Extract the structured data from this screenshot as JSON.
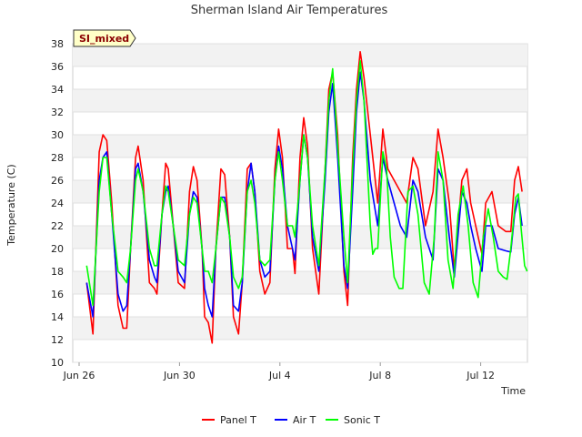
{
  "chart_data": {
    "type": "line",
    "title": "Sherman Island Air Temperatures",
    "xlabel": "Time",
    "ylabel": "Temperature (C)",
    "tag": "SI_mixed",
    "xlim": [
      0,
      18
    ],
    "ylim": [
      10,
      38
    ],
    "yticks": [
      10,
      12,
      14,
      16,
      18,
      20,
      22,
      24,
      26,
      28,
      30,
      32,
      34,
      36,
      38
    ],
    "xticks": [
      {
        "day": 0,
        "label": "Jun 26"
      },
      {
        "day": 4,
        "label": "Jun 30"
      },
      {
        "day": 8,
        "label": "Jul 4"
      },
      {
        "day": 12,
        "label": "Jul 8"
      },
      {
        "day": 16,
        "label": "Jul 12"
      }
    ],
    "grid": true,
    "legend_position": "bottom",
    "series": [
      {
        "name": "Panel T",
        "color": "#ff0000",
        "points": [
          [
            0.3,
            17.0
          ],
          [
            0.55,
            12.5
          ],
          [
            0.8,
            28.5
          ],
          [
            0.95,
            30.0
          ],
          [
            1.1,
            29.5
          ],
          [
            1.3,
            24.0
          ],
          [
            1.55,
            15.0
          ],
          [
            1.75,
            13.0
          ],
          [
            1.9,
            13.0
          ],
          [
            2.05,
            20.0
          ],
          [
            2.25,
            28.0
          ],
          [
            2.35,
            29.0
          ],
          [
            2.55,
            26.0
          ],
          [
            2.8,
            17.0
          ],
          [
            3.0,
            16.5
          ],
          [
            3.1,
            16.0
          ],
          [
            3.3,
            23.0
          ],
          [
            3.45,
            27.5
          ],
          [
            3.55,
            27.0
          ],
          [
            3.75,
            22.0
          ],
          [
            3.95,
            17.0
          ],
          [
            4.2,
            16.5
          ],
          [
            4.4,
            25.0
          ],
          [
            4.55,
            27.2
          ],
          [
            4.7,
            26.0
          ],
          [
            4.9,
            20.0
          ],
          [
            5.0,
            14.0
          ],
          [
            5.15,
            13.5
          ],
          [
            5.3,
            11.7
          ],
          [
            5.45,
            20.0
          ],
          [
            5.65,
            27.0
          ],
          [
            5.8,
            26.5
          ],
          [
            6.0,
            21.0
          ],
          [
            6.15,
            14.0
          ],
          [
            6.35,
            12.5
          ],
          [
            6.5,
            17.0
          ],
          [
            6.7,
            27.0
          ],
          [
            6.85,
            27.5
          ],
          [
            7.0,
            25.0
          ],
          [
            7.2,
            18.0
          ],
          [
            7.4,
            16.0
          ],
          [
            7.6,
            17.0
          ],
          [
            7.8,
            27.0
          ],
          [
            7.95,
            30.5
          ],
          [
            8.1,
            28.0
          ],
          [
            8.3,
            20.0
          ],
          [
            8.5,
            20.0
          ],
          [
            8.6,
            17.8
          ],
          [
            8.8,
            28.0
          ],
          [
            8.95,
            31.5
          ],
          [
            9.1,
            29.0
          ],
          [
            9.3,
            20.0
          ],
          [
            9.55,
            16.0
          ],
          [
            9.8,
            27.0
          ],
          [
            9.95,
            34.0
          ],
          [
            10.1,
            35.5
          ],
          [
            10.3,
            30.0
          ],
          [
            10.55,
            18.0
          ],
          [
            10.7,
            15.0
          ],
          [
            10.9,
            28.0
          ],
          [
            11.05,
            34.0
          ],
          [
            11.2,
            37.3
          ],
          [
            11.35,
            35.0
          ],
          [
            11.6,
            30.0
          ],
          [
            11.9,
            24.0
          ],
          [
            12.1,
            30.5
          ],
          [
            12.3,
            27.0
          ],
          [
            12.55,
            26.0
          ],
          [
            12.8,
            25.0
          ],
          [
            13.05,
            24.0
          ],
          [
            13.3,
            28.0
          ],
          [
            13.5,
            27.0
          ],
          [
            13.8,
            22.0
          ],
          [
            14.1,
            25.0
          ],
          [
            14.3,
            30.5
          ],
          [
            14.5,
            28.0
          ],
          [
            14.75,
            24.0
          ],
          [
            14.95,
            18.0
          ],
          [
            15.25,
            26.0
          ],
          [
            15.45,
            27.0
          ],
          [
            15.6,
            24.0
          ],
          [
            15.8,
            22.0
          ],
          [
            16.05,
            19.5
          ],
          [
            16.2,
            24.0
          ],
          [
            16.45,
            25.0
          ],
          [
            16.7,
            22.0
          ],
          [
            17.0,
            21.5
          ],
          [
            17.2,
            21.5
          ],
          [
            17.35,
            26.0
          ],
          [
            17.5,
            27.2
          ],
          [
            17.65,
            25.0
          ]
        ]
      },
      {
        "name": "Air T",
        "color": "#0000ff",
        "points": [
          [
            0.3,
            17.0
          ],
          [
            0.55,
            14.0
          ],
          [
            0.8,
            26.0
          ],
          [
            0.95,
            28.0
          ],
          [
            1.1,
            28.5
          ],
          [
            1.3,
            23.0
          ],
          [
            1.55,
            16.0
          ],
          [
            1.75,
            14.5
          ],
          [
            1.9,
            15.0
          ],
          [
            2.05,
            20.0
          ],
          [
            2.25,
            27.0
          ],
          [
            2.35,
            27.5
          ],
          [
            2.55,
            25.0
          ],
          [
            2.8,
            19.0
          ],
          [
            3.0,
            17.5
          ],
          [
            3.1,
            17.0
          ],
          [
            3.3,
            23.0
          ],
          [
            3.45,
            25.0
          ],
          [
            3.55,
            25.5
          ],
          [
            3.75,
            22.0
          ],
          [
            3.95,
            18.0
          ],
          [
            4.2,
            17.0
          ],
          [
            4.4,
            23.0
          ],
          [
            4.55,
            25.0
          ],
          [
            4.7,
            24.5
          ],
          [
            4.9,
            20.0
          ],
          [
            5.0,
            16.5
          ],
          [
            5.15,
            15.0
          ],
          [
            5.3,
            14.0
          ],
          [
            5.45,
            20.0
          ],
          [
            5.65,
            24.5
          ],
          [
            5.8,
            24.5
          ],
          [
            6.0,
            21.0
          ],
          [
            6.15,
            15.0
          ],
          [
            6.35,
            14.5
          ],
          [
            6.5,
            17.0
          ],
          [
            6.7,
            25.0
          ],
          [
            6.85,
            27.5
          ],
          [
            7.0,
            25.0
          ],
          [
            7.2,
            19.0
          ],
          [
            7.4,
            17.5
          ],
          [
            7.6,
            18.0
          ],
          [
            7.8,
            26.0
          ],
          [
            7.95,
            29.0
          ],
          [
            8.1,
            27.0
          ],
          [
            8.3,
            22.0
          ],
          [
            8.5,
            20.0
          ],
          [
            8.6,
            19.0
          ],
          [
            8.8,
            26.0
          ],
          [
            8.95,
            30.0
          ],
          [
            9.1,
            28.0
          ],
          [
            9.3,
            21.0
          ],
          [
            9.55,
            18.0
          ],
          [
            9.8,
            26.0
          ],
          [
            9.95,
            32.0
          ],
          [
            10.1,
            34.5
          ],
          [
            10.3,
            28.0
          ],
          [
            10.55,
            18.5
          ],
          [
            10.7,
            16.5
          ],
          [
            10.9,
            25.0
          ],
          [
            11.05,
            32.0
          ],
          [
            11.2,
            35.5
          ],
          [
            11.35,
            33.0
          ],
          [
            11.6,
            26.0
          ],
          [
            11.9,
            22.0
          ],
          [
            12.1,
            28.0
          ],
          [
            12.3,
            26.0
          ],
          [
            12.55,
            24.0
          ],
          [
            12.8,
            22.0
          ],
          [
            13.05,
            21.0
          ],
          [
            13.3,
            26.0
          ],
          [
            13.5,
            25.0
          ],
          [
            13.8,
            21.0
          ],
          [
            14.1,
            19.0
          ],
          [
            14.3,
            27.0
          ],
          [
            14.5,
            26.0
          ],
          [
            14.75,
            21.0
          ],
          [
            14.95,
            17.5
          ],
          [
            15.25,
            25.0
          ],
          [
            15.45,
            24.0
          ],
          [
            15.6,
            22.0
          ],
          [
            15.8,
            20.0
          ],
          [
            16.05,
            18.0
          ],
          [
            16.2,
            22.0
          ],
          [
            16.45,
            22.0
          ],
          [
            16.7,
            20.0
          ],
          [
            17.0,
            19.8
          ],
          [
            17.2,
            19.7
          ],
          [
            17.35,
            23.0
          ],
          [
            17.5,
            24.5
          ],
          [
            17.65,
            22.0
          ]
        ]
      },
      {
        "name": "Sonic T",
        "color": "#00ff00",
        "points": [
          [
            0.3,
            18.5
          ],
          [
            0.55,
            15.0
          ],
          [
            0.8,
            25.0
          ],
          [
            0.95,
            28.0
          ],
          [
            1.1,
            28.0
          ],
          [
            1.3,
            23.0
          ],
          [
            1.55,
            18.0
          ],
          [
            1.75,
            17.5
          ],
          [
            1.9,
            17.0
          ],
          [
            2.05,
            20.0
          ],
          [
            2.25,
            26.0
          ],
          [
            2.35,
            27.0
          ],
          [
            2.55,
            25.0
          ],
          [
            2.8,
            20.0
          ],
          [
            3.0,
            18.5
          ],
          [
            3.1,
            18.5
          ],
          [
            3.3,
            23.0
          ],
          [
            3.45,
            25.5
          ],
          [
            3.55,
            25.0
          ],
          [
            3.75,
            22.0
          ],
          [
            3.95,
            19.0
          ],
          [
            4.2,
            18.5
          ],
          [
            4.4,
            23.0
          ],
          [
            4.55,
            24.5
          ],
          [
            4.7,
            24.0
          ],
          [
            4.9,
            20.0
          ],
          [
            5.0,
            18.0
          ],
          [
            5.15,
            18.0
          ],
          [
            5.3,
            17.0
          ],
          [
            5.45,
            20.0
          ],
          [
            5.65,
            24.5
          ],
          [
            5.8,
            24.0
          ],
          [
            6.0,
            21.0
          ],
          [
            6.15,
            17.5
          ],
          [
            6.35,
            16.5
          ],
          [
            6.5,
            17.5
          ],
          [
            6.7,
            25.0
          ],
          [
            6.85,
            26.0
          ],
          [
            7.0,
            24.0
          ],
          [
            7.2,
            19.0
          ],
          [
            7.4,
            18.5
          ],
          [
            7.6,
            19.0
          ],
          [
            7.8,
            26.0
          ],
          [
            7.95,
            28.5
          ],
          [
            8.1,
            26.0
          ],
          [
            8.3,
            22.0
          ],
          [
            8.5,
            22.0
          ],
          [
            8.6,
            21.0
          ],
          [
            8.8,
            26.0
          ],
          [
            8.95,
            30.0
          ],
          [
            9.1,
            28.0
          ],
          [
            9.3,
            22.0
          ],
          [
            9.55,
            18.5
          ],
          [
            9.8,
            27.0
          ],
          [
            9.95,
            33.0
          ],
          [
            10.1,
            35.8
          ],
          [
            10.3,
            29.0
          ],
          [
            10.55,
            21.0
          ],
          [
            10.7,
            17.0
          ],
          [
            10.9,
            27.0
          ],
          [
            11.05,
            33.0
          ],
          [
            11.2,
            36.5
          ],
          [
            11.35,
            33.0
          ],
          [
            11.6,
            22.0
          ],
          [
            11.7,
            19.5
          ],
          [
            11.8,
            20.0
          ],
          [
            11.9,
            20.0
          ],
          [
            12.1,
            28.5
          ],
          [
            12.25,
            27.0
          ],
          [
            12.4,
            21.0
          ],
          [
            12.55,
            17.5
          ],
          [
            12.75,
            16.5
          ],
          [
            12.9,
            16.5
          ],
          [
            13.1,
            25.0
          ],
          [
            13.3,
            25.5
          ],
          [
            13.5,
            23.0
          ],
          [
            13.75,
            17.0
          ],
          [
            13.95,
            16.0
          ],
          [
            14.15,
            21.0
          ],
          [
            14.3,
            28.5
          ],
          [
            14.5,
            26.0
          ],
          [
            14.7,
            19.0
          ],
          [
            14.9,
            16.5
          ],
          [
            15.1,
            23.0
          ],
          [
            15.3,
            25.5
          ],
          [
            15.5,
            22.0
          ],
          [
            15.7,
            17.0
          ],
          [
            15.9,
            15.7
          ],
          [
            16.1,
            21.0
          ],
          [
            16.3,
            23.5
          ],
          [
            16.5,
            21.0
          ],
          [
            16.7,
            18.0
          ],
          [
            16.9,
            17.5
          ],
          [
            17.05,
            17.3
          ],
          [
            17.2,
            20.0
          ],
          [
            17.4,
            24.5
          ],
          [
            17.5,
            24.8
          ],
          [
            17.6,
            22.0
          ],
          [
            17.75,
            18.5
          ],
          [
            17.85,
            18.0
          ]
        ]
      }
    ]
  }
}
